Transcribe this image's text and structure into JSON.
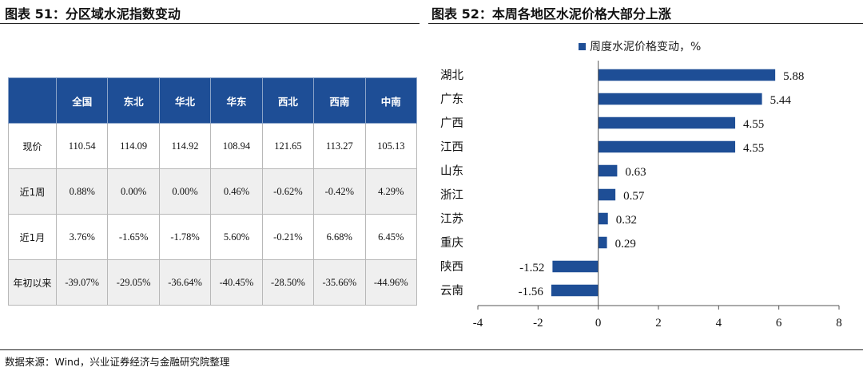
{
  "left": {
    "title": "图表 51：分区域水泥指数变动",
    "table": {
      "headers": [
        "",
        "全国",
        "东北",
        "华北",
        "华东",
        "西北",
        "西南",
        "中南"
      ],
      "rows": [
        [
          "现价",
          "110.54",
          "114.09",
          "114.92",
          "108.94",
          "121.65",
          "113.27",
          "105.13"
        ],
        [
          "近1周",
          "0.88%",
          "0.00%",
          "0.00%",
          "0.46%",
          "-0.62%",
          "-0.42%",
          "4.29%"
        ],
        [
          "近1月",
          "3.76%",
          "-1.65%",
          "-1.78%",
          "5.60%",
          "-0.21%",
          "6.68%",
          "6.45%"
        ],
        [
          "年初以来",
          "-39.07%",
          "-29.05%",
          "-36.64%",
          "-40.45%",
          "-28.50%",
          "-35.66%",
          "-44.96%"
        ]
      ]
    }
  },
  "right": {
    "title": "图表 52：本周各地区水泥价格大部分上涨"
  },
  "chart_data": {
    "type": "bar",
    "orientation": "horizontal",
    "categories": [
      "湖北",
      "广东",
      "广西",
      "江西",
      "山东",
      "浙江",
      "江苏",
      "重庆",
      "陕西",
      "云南"
    ],
    "series": [
      {
        "name": "周度水泥价格变动，%",
        "values": [
          5.88,
          5.44,
          4.55,
          4.55,
          0.63,
          0.57,
          0.32,
          0.29,
          -1.52,
          -1.56
        ]
      }
    ],
    "xlim": [
      -4,
      8
    ],
    "xticks": [
      -4,
      -2,
      0,
      2,
      4,
      6,
      8
    ],
    "grid": false,
    "legend_position": "top",
    "bar_color": "#1e4e96",
    "data_labels": true
  },
  "footer": {
    "source": "数据来源：Wind，兴业证券经济与金融研究院整理"
  }
}
